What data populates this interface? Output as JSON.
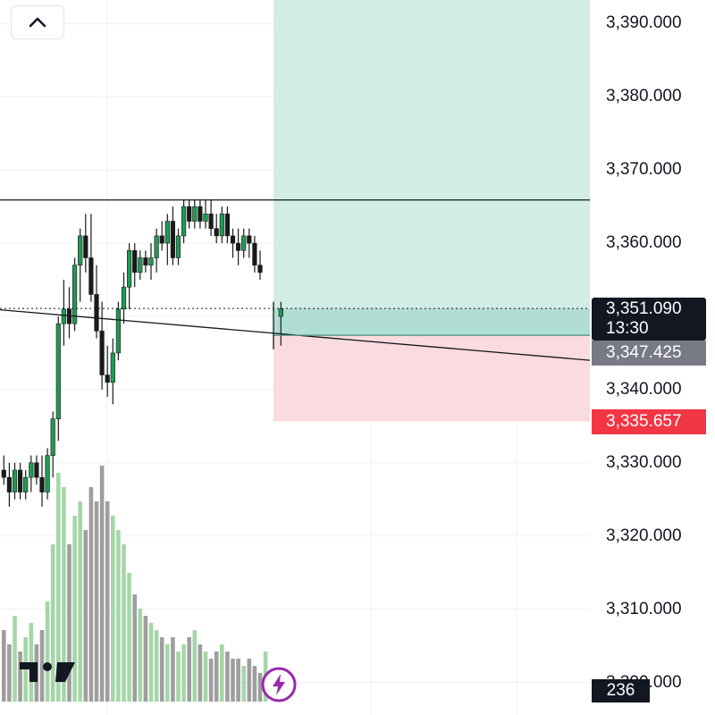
{
  "chart_data": {
    "type": "candlestick",
    "ylim": [
      3290,
      3395
    ],
    "y_ticks": [
      "3,390.000",
      "3,380.000",
      "3,370.000",
      "3,360.000",
      "3,350.000",
      "3,340.000",
      "3,330.000",
      "3,320.000",
      "3,310.000",
      "3,300.000"
    ],
    "resistance_level": 3365.9,
    "current_price": {
      "label": "3,351.090",
      "value": 3351.09,
      "countdown": "13:30"
    },
    "position": {
      "entry": {
        "label": "3,347.425",
        "value": 3347.425
      },
      "stop": {
        "label": "3,335.657",
        "value": 3335.657
      },
      "target": 3395
    },
    "trendline": {
      "from": 3350.9,
      "to": 3344.0
    },
    "volume_label": "236",
    "candles": [
      {
        "o": 3329,
        "h": 3331,
        "l": 3327,
        "c": 3328
      },
      {
        "o": 3328,
        "h": 3330,
        "l": 3324,
        "c": 3326
      },
      {
        "o": 3326,
        "h": 3330,
        "l": 3325,
        "c": 3329
      },
      {
        "o": 3329,
        "h": 3330,
        "l": 3325,
        "c": 3326
      },
      {
        "o": 3326,
        "h": 3329,
        "l": 3325,
        "c": 3328
      },
      {
        "o": 3328,
        "h": 3331,
        "l": 3326,
        "c": 3330
      },
      {
        "o": 3330,
        "h": 3331,
        "l": 3327,
        "c": 3328
      },
      {
        "o": 3328,
        "h": 3331,
        "l": 3324,
        "c": 3326
      },
      {
        "o": 3326,
        "h": 3332,
        "l": 3325,
        "c": 3331
      },
      {
        "o": 3331,
        "h": 3337,
        "l": 3328,
        "c": 3336
      },
      {
        "o": 3336,
        "h": 3350,
        "l": 3333,
        "c": 3349
      },
      {
        "o": 3349,
        "h": 3355,
        "l": 3346,
        "c": 3351
      },
      {
        "o": 3351,
        "h": 3354,
        "l": 3347,
        "c": 3349
      },
      {
        "o": 3349,
        "h": 3358,
        "l": 3348,
        "c": 3357
      },
      {
        "o": 3357,
        "h": 3362,
        "l": 3352,
        "c": 3361
      },
      {
        "o": 3361,
        "h": 3364,
        "l": 3356,
        "c": 3358
      },
      {
        "o": 3358,
        "h": 3364,
        "l": 3352,
        "c": 3353
      },
      {
        "o": 3353,
        "h": 3357,
        "l": 3347,
        "c": 3348
      },
      {
        "o": 3348,
        "h": 3352,
        "l": 3340,
        "c": 3342
      },
      {
        "o": 3342,
        "h": 3346,
        "l": 3339,
        "c": 3341
      },
      {
        "o": 3341,
        "h": 3347,
        "l": 3338,
        "c": 3345
      },
      {
        "o": 3345,
        "h": 3352,
        "l": 3344,
        "c": 3351
      },
      {
        "o": 3351,
        "h": 3356,
        "l": 3349,
        "c": 3354
      },
      {
        "o": 3354,
        "h": 3360,
        "l": 3351,
        "c": 3359
      },
      {
        "o": 3359,
        "h": 3360,
        "l": 3354,
        "c": 3356
      },
      {
        "o": 3356,
        "h": 3359,
        "l": 3355,
        "c": 3358
      },
      {
        "o": 3358,
        "h": 3359,
        "l": 3356,
        "c": 3357
      },
      {
        "o": 3357,
        "h": 3360,
        "l": 3355,
        "c": 3358
      },
      {
        "o": 3358,
        "h": 3362,
        "l": 3356,
        "c": 3361
      },
      {
        "o": 3361,
        "h": 3363,
        "l": 3359,
        "c": 3360
      },
      {
        "o": 3360,
        "h": 3364,
        "l": 3357,
        "c": 3363
      },
      {
        "o": 3363,
        "h": 3365,
        "l": 3357,
        "c": 3358
      },
      {
        "o": 3358,
        "h": 3362,
        "l": 3357,
        "c": 3361
      },
      {
        "o": 3361,
        "h": 3366,
        "l": 3360,
        "c": 3365
      },
      {
        "o": 3365,
        "h": 3366,
        "l": 3362,
        "c": 3363
      },
      {
        "o": 3363,
        "h": 3366,
        "l": 3362,
        "c": 3365
      },
      {
        "o": 3365,
        "h": 3366,
        "l": 3362,
        "c": 3363
      },
      {
        "o": 3363,
        "h": 3366,
        "l": 3362,
        "c": 3364
      },
      {
        "o": 3364,
        "h": 3366,
        "l": 3361,
        "c": 3362
      },
      {
        "o": 3362,
        "h": 3364,
        "l": 3360,
        "c": 3361
      },
      {
        "o": 3361,
        "h": 3365,
        "l": 3360,
        "c": 3364
      },
      {
        "o": 3364,
        "h": 3365,
        "l": 3360,
        "c": 3361
      },
      {
        "o": 3361,
        "h": 3362,
        "l": 3358,
        "c": 3360
      },
      {
        "o": 3360,
        "h": 3362,
        "l": 3357,
        "c": 3359
      },
      {
        "o": 3359,
        "h": 3362,
        "l": 3358,
        "c": 3361
      },
      {
        "o": 3361,
        "h": 3362,
        "l": 3358,
        "c": 3360
      },
      {
        "o": 3360,
        "h": 3361,
        "l": 3356,
        "c": 3357
      },
      {
        "o": 3357,
        "h": 3359,
        "l": 3355,
        "c": 3356
      },
      {
        "o": 3350,
        "h": 3352,
        "l": 3346,
        "c": 3351
      }
    ],
    "volumes": [
      10,
      8,
      12,
      7,
      9,
      11,
      8,
      10,
      14,
      22,
      32,
      30,
      22,
      26,
      28,
      24,
      30,
      28,
      33,
      28,
      26,
      24,
      22,
      18,
      15,
      13,
      12,
      11,
      10,
      9,
      8,
      9,
      7,
      8,
      9,
      10,
      8,
      7,
      6,
      7,
      8,
      7,
      6,
      6,
      5,
      6,
      5,
      4,
      7
    ],
    "colors": {
      "up": "#1f9a52",
      "down": "#1a1a1a",
      "vol_up": "#a5d6a7",
      "vol_down": "#9e9e9e",
      "profit_zone": "#d2ece6",
      "loss_zone": "#fadbdf",
      "stop": "#f23645",
      "entry": "#787b86"
    }
  },
  "ui": {
    "collapse_icon": "chevron-up-icon",
    "logo": "tradingview-logo",
    "bolt_icon": "lightning-icon"
  }
}
